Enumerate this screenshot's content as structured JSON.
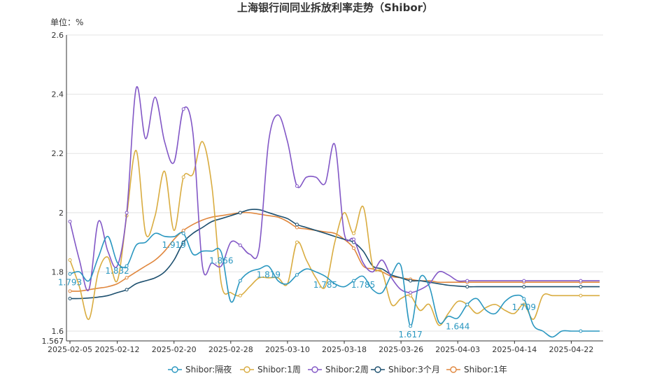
{
  "chart_data": {
    "type": "line",
    "title": "上海银行间同业拆放利率走势（Shibor）",
    "unit_label": "单位：%",
    "xlabel": "",
    "ylabel": "",
    "x_tick_labels": [
      "2025-02-05",
      "2025-02-12",
      "2025-02-20",
      "2025-02-28",
      "2025-03-10",
      "2025-03-18",
      "2025-03-26",
      "2025-04-03",
      "2025-04-14",
      "2025-04-22"
    ],
    "y_tick_labels": [
      "1.567",
      "1.6",
      "1.8",
      "2",
      "2.2",
      "2.4",
      "2.6"
    ],
    "ylim": [
      1.567,
      2.6
    ],
    "grid": true,
    "legend_position": "bottom",
    "x": [
      "02-05",
      "02-06",
      "02-07",
      "02-10",
      "02-11",
      "02-12",
      "02-13",
      "02-14",
      "02-17",
      "02-18",
      "02-19",
      "02-20",
      "02-21",
      "02-24",
      "02-25",
      "02-26",
      "02-27",
      "02-28",
      "03-03",
      "03-04",
      "03-05",
      "03-06",
      "03-07",
      "03-10",
      "03-11",
      "03-12",
      "03-13",
      "03-14",
      "03-17",
      "03-18",
      "03-19",
      "03-20",
      "03-21",
      "03-24",
      "03-25",
      "03-26",
      "03-27",
      "03-28",
      "03-31",
      "04-01",
      "04-02",
      "04-03",
      "04-07",
      "04-08",
      "04-09",
      "04-10",
      "04-11",
      "04-14",
      "04-15",
      "04-16",
      "04-17",
      "04-18",
      "04-21",
      "04-22",
      "04-23",
      "04-24",
      "04-25"
    ],
    "series": [
      {
        "name": "Shibor:隔夜",
        "color": "#2a97c0",
        "values": [
          1.793,
          1.8,
          1.77,
          1.85,
          1.92,
          1.832,
          1.82,
          1.89,
          1.9,
          1.93,
          1.92,
          1.919,
          1.93,
          1.86,
          1.87,
          1.87,
          1.866,
          1.7,
          1.77,
          1.8,
          1.81,
          1.819,
          1.77,
          1.76,
          1.79,
          1.81,
          1.8,
          1.785,
          1.76,
          1.75,
          1.77,
          1.785,
          1.74,
          1.73,
          1.79,
          1.82,
          1.617,
          1.78,
          1.75,
          1.63,
          1.65,
          1.644,
          1.69,
          1.71,
          1.67,
          1.66,
          1.7,
          1.72,
          1.709,
          1.62,
          1.6,
          1.58,
          1.6,
          1.6,
          1.6,
          1.6,
          1.6
        ]
      },
      {
        "name": "Shibor:1周",
        "color": "#d9ac40",
        "values": [
          1.84,
          1.75,
          1.64,
          1.8,
          1.85,
          1.77,
          1.99,
          2.21,
          1.93,
          1.99,
          2.14,
          1.94,
          2.12,
          2.13,
          2.24,
          2.09,
          1.76,
          1.73,
          1.72,
          1.75,
          1.78,
          1.78,
          1.78,
          1.76,
          1.9,
          1.84,
          1.78,
          1.75,
          1.9,
          2.0,
          1.93,
          2.02,
          1.82,
          1.8,
          1.69,
          1.71,
          1.72,
          1.67,
          1.69,
          1.62,
          1.66,
          1.7,
          1.69,
          1.66,
          1.68,
          1.69,
          1.67,
          1.66,
          1.69,
          1.64,
          1.72,
          1.72,
          1.72,
          1.72,
          1.72,
          1.72,
          1.72
        ]
      },
      {
        "name": "Shibor:2周",
        "color": "#8257c6",
        "values": [
          1.97,
          1.84,
          1.74,
          1.97,
          1.87,
          1.82,
          2.0,
          2.42,
          2.25,
          2.39,
          2.24,
          2.17,
          2.35,
          2.27,
          1.82,
          1.83,
          1.82,
          1.9,
          1.89,
          1.86,
          1.88,
          2.24,
          2.33,
          2.24,
          2.09,
          2.12,
          2.12,
          2.1,
          2.23,
          1.93,
          1.91,
          1.83,
          1.8,
          1.84,
          1.78,
          1.74,
          1.73,
          1.74,
          1.76,
          1.8,
          1.79,
          1.77,
          1.77,
          1.77,
          1.77,
          1.77,
          1.77,
          1.77,
          1.77,
          1.77,
          1.77,
          1.77,
          1.77,
          1.77,
          1.77,
          1.77,
          1.77
        ]
      },
      {
        "name": "Shibor:3个月",
        "color": "#1c4f6e",
        "values": [
          1.71,
          1.71,
          1.712,
          1.715,
          1.72,
          1.73,
          1.74,
          1.76,
          1.77,
          1.78,
          1.8,
          1.84,
          1.9,
          1.93,
          1.95,
          1.97,
          1.98,
          1.99,
          2.0,
          2.01,
          2.01,
          2.0,
          1.99,
          1.98,
          1.96,
          1.95,
          1.94,
          1.93,
          1.92,
          1.91,
          1.9,
          1.87,
          1.82,
          1.81,
          1.79,
          1.78,
          1.77,
          1.77,
          1.765,
          1.76,
          1.755,
          1.752,
          1.75,
          1.75,
          1.75,
          1.75,
          1.75,
          1.75,
          1.75,
          1.75,
          1.75,
          1.75,
          1.75,
          1.75,
          1.75,
          1.75,
          1.75
        ]
      },
      {
        "name": "Shibor:1年",
        "color": "#e0873e",
        "values": [
          1.735,
          1.735,
          1.74,
          1.745,
          1.75,
          1.76,
          1.78,
          1.8,
          1.82,
          1.84,
          1.87,
          1.91,
          1.94,
          1.96,
          1.975,
          1.985,
          1.99,
          1.995,
          2.0,
          2.0,
          1.995,
          1.99,
          1.985,
          1.97,
          1.95,
          1.945,
          1.94,
          1.935,
          1.93,
          1.91,
          1.88,
          1.82,
          1.81,
          1.8,
          1.785,
          1.78,
          1.775,
          1.77,
          1.77,
          1.765,
          1.765,
          1.765,
          1.765,
          1.765,
          1.765,
          1.765,
          1.765,
          1.765,
          1.765,
          1.765,
          1.765,
          1.765,
          1.765,
          1.765,
          1.765,
          1.765,
          1.765
        ]
      }
    ],
    "data_labels": [
      {
        "series": "Shibor:隔夜",
        "text": "1.793"
      },
      {
        "series": "Shibor:隔夜",
        "text": "1.832"
      },
      {
        "series": "Shibor:隔夜",
        "text": "1.919"
      },
      {
        "series": "Shibor:隔夜",
        "text": "1.866"
      },
      {
        "series": "Shibor:隔夜",
        "text": "1.819"
      },
      {
        "series": "Shibor:隔夜",
        "text": "1.785"
      },
      {
        "series": "Shibor:隔夜",
        "text": "1.785"
      },
      {
        "series": "Shibor:隔夜",
        "text": "1.617"
      },
      {
        "series": "Shibor:隔夜",
        "text": "1.644"
      },
      {
        "series": "Shibor:隔夜",
        "text": "1.709"
      }
    ]
  }
}
